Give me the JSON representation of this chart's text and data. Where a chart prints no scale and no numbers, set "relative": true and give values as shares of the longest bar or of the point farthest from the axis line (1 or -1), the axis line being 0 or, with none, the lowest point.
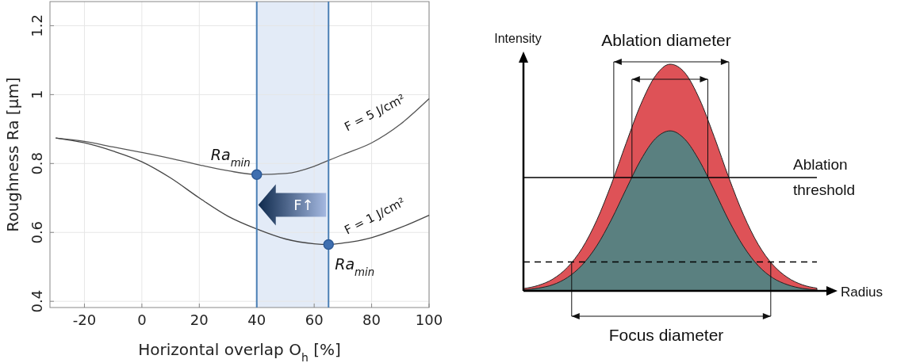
{
  "chart_data": [
    {
      "type": "line",
      "xlabel": "Horizontal overlap O$_{h}$ [%]",
      "ylabel": "Roughness Ra [µm]",
      "x": [
        -30,
        -20,
        -10,
        0,
        10,
        20,
        30,
        40,
        50,
        60,
        65,
        70,
        80,
        90,
        100
      ],
      "series": [
        {
          "color": "#555555",
          "values": [
            0.874,
            0.864,
            0.848,
            0.832,
            0.815,
            0.796,
            0.779,
            0.768,
            0.771,
            0.792,
            0.809,
            0.826,
            0.86,
            0.914,
            0.988
          ]
        },
        {
          "color": "#444444",
          "values": [
            0.874,
            0.86,
            0.836,
            0.805,
            0.758,
            0.7,
            0.647,
            0.61,
            0.581,
            0.567,
            0.565,
            0.569,
            0.585,
            0.614,
            0.65
          ]
        },
        {
          "type": "scatter",
          "color": "#3f6fb0",
          "x": [
            40,
            65
          ],
          "values": [
            0.768,
            0.565
          ],
          "marker": "circle"
        }
      ],
      "xlim": [
        -32,
        100
      ],
      "ylim": [
        0.382,
        1.27
      ],
      "xticks": [
        -20,
        0,
        20,
        40,
        60,
        80,
        100
      ],
      "yticks": [
        0.4,
        0.6,
        0.8,
        {
          "value": 1,
          "label": "1"
        },
        1.2
      ],
      "grid": true,
      "bands": [
        {
          "axis": "x",
          "from": 40,
          "to": 65,
          "color": "#e3ebf7"
        }
      ],
      "ref_lines": [
        {
          "axis": "x",
          "value": 40,
          "color": "#4a7fb5"
        },
        {
          "axis": "x",
          "value": 65,
          "color": "#4a7fb5"
        }
      ],
      "annotations": [
        {
          "text": "Ra$_{min}$",
          "x": 40,
          "y": 0.768
        },
        {
          "text": "Ra$_{min}$",
          "x": 65,
          "y": 0.565
        },
        {
          "text": "F = 5 J/cm²",
          "x": 90,
          "y": 0.914
        },
        {
          "text": "F = 1 J/cm²",
          "x": 90,
          "y": 0.614
        },
        {
          "text": "F↑",
          "x": 40,
          "y": 0.68
        }
      ]
    },
    {
      "type": "area",
      "relative": true,
      "xlabel": "Radius",
      "ylabel": "Intensity",
      "categories": [
        null,
        null,
        null,
        null,
        null,
        null,
        null,
        null,
        null,
        null,
        null,
        null,
        null,
        null,
        null,
        null,
        null,
        null,
        null,
        null,
        null
      ],
      "series": [
        {
          "color": "#de5257",
          "values": [
            0.01,
            0.024,
            0.052,
            0.104,
            0.188,
            0.312,
            0.472,
            0.652,
            0.823,
            0.949,
            1,
            0.962,
            0.846,
            0.68,
            0.499,
            0.335,
            0.205,
            0.115,
            0.059,
            0.027,
            0.012
          ]
        },
        {
          "color": "#5a8080",
          "values": [
            0.004,
            0.012,
            0.027,
            0.059,
            0.114,
            0.199,
            0.315,
            0.449,
            0.578,
            0.672,
            0.706,
            0.669,
            0.573,
            0.444,
            0.31,
            0.196,
            0.111,
            0.057,
            0.027,
            0.011,
            0.004
          ]
        }
      ],
      "ref_lines": [
        {
          "axis": "y",
          "value": 0.5,
          "label": "Ablation threshold",
          "line_style": "solid"
        },
        {
          "axis": "y",
          "value": 0.128,
          "line_style": "dashed"
        }
      ],
      "annotations": [
        "Ablation diameter",
        "Focus diameter"
      ]
    }
  ]
}
